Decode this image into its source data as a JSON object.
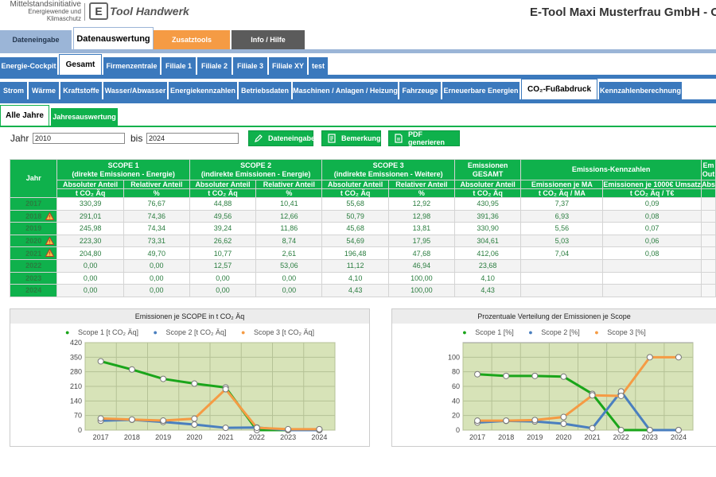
{
  "header": {
    "brand_line1": "Mittelstandsinitiative",
    "brand_line2": "Energiewende und",
    "brand_line3": "Klimaschutz",
    "logo_text": "Tool Handwerk",
    "company": "E-Tool Maxi Musterfrau GmbH - Oryx"
  },
  "main_tabs": [
    "Dateneingabe",
    "Datenauswertung",
    "Zusatztools",
    "Info / Hilfe"
  ],
  "location_tabs": [
    "Energie-Cockpit",
    "Gesamt",
    "Firmenzentrale",
    "Filiale 1",
    "Filiale 2",
    "Filiale 3",
    "Filiale XY",
    "test"
  ],
  "category_tabs": [
    "Strom",
    "Wärme",
    "Kraftstoffe",
    "Wasser/Abwasser",
    "Energiekennzahlen",
    "Betriebsdaten",
    "Maschinen / Anlagen / Heizung",
    "Fahrzeuge",
    "Erneuerbare Energien",
    "CO₂-Fußabdruck",
    "Kennzahlenberechnung"
  ],
  "sub_tabs": [
    "Alle Jahre",
    "Jahresauswertung"
  ],
  "filter": {
    "jahr_label": "Jahr",
    "from": "2010",
    "bis_label": "bis",
    "to": "2024",
    "btn_dateneingabe": "Dateneingabe",
    "btn_bemerkung": "Bemerkung",
    "btn_pdf": "PDF generieren"
  },
  "table": {
    "col_year": "Jahr",
    "scope1_title": "SCOPE 1",
    "scope1_sub": "(direkte Emissionen - Energie)",
    "scope2_title": "SCOPE 2",
    "scope2_sub": "(indirekte Emissionen - Energie)",
    "scope3_title": "SCOPE 3",
    "scope3_sub": "(indirekte Emissionen - Weitere)",
    "total_title": "Emissionen",
    "total_sub": "GESAMT",
    "kpi_title": "Emissions-Kennzahlen",
    "extra_title": "Em",
    "extra_sub": "Out",
    "abs": "Absoluter Anteil",
    "rel": "Relativer Anteil",
    "unit_t": "t CO₂ Äq",
    "unit_pct": "%",
    "kpi_ma": "Emissionen je MA",
    "kpi_umsatz": "Emissionen je 1000€ Umsatz",
    "unit_ma": "t CO₂ Äq / MA",
    "unit_umsatz": "t CO₂ Äq / T€",
    "extra_h2": "Abs",
    "rows": [
      {
        "year": "2017",
        "warn": false,
        "s1a": "330,39",
        "s1r": "76,67",
        "s2a": "44,88",
        "s2r": "10,41",
        "s3a": "55,68",
        "s3r": "12,92",
        "tot": "430,95",
        "ma": "7,37",
        "ums": "0,09"
      },
      {
        "year": "2018",
        "warn": true,
        "s1a": "291,01",
        "s1r": "74,36",
        "s2a": "49,56",
        "s2r": "12,66",
        "s3a": "50,79",
        "s3r": "12,98",
        "tot": "391,36",
        "ma": "6,93",
        "ums": "0,08"
      },
      {
        "year": "2019",
        "warn": false,
        "s1a": "245,98",
        "s1r": "74,34",
        "s2a": "39,24",
        "s2r": "11,86",
        "s3a": "45,68",
        "s3r": "13,81",
        "tot": "330,90",
        "ma": "5,56",
        "ums": "0,07"
      },
      {
        "year": "2020",
        "warn": true,
        "s1a": "223,30",
        "s1r": "73,31",
        "s2a": "26,62",
        "s2r": "8,74",
        "s3a": "54,69",
        "s3r": "17,95",
        "tot": "304,61",
        "ma": "5,03",
        "ums": "0,06"
      },
      {
        "year": "2021",
        "warn": true,
        "s1a": "204,80",
        "s1r": "49,70",
        "s2a": "10,77",
        "s2r": "2,61",
        "s3a": "196,48",
        "s3r": "47,68",
        "tot": "412,06",
        "ma": "7,04",
        "ums": "0,08"
      },
      {
        "year": "2022",
        "warn": false,
        "s1a": "0,00",
        "s1r": "0,00",
        "s2a": "12,57",
        "s2r": "53,06",
        "s3a": "11,12",
        "s3r": "46,94",
        "tot": "23,68",
        "ma": "",
        "ums": ""
      },
      {
        "year": "2023",
        "warn": false,
        "s1a": "0,00",
        "s1r": "0,00",
        "s2a": "0,00",
        "s2r": "0,00",
        "s3a": "4,10",
        "s3r": "100,00",
        "tot": "4,10",
        "ma": "",
        "ums": ""
      },
      {
        "year": "2024",
        "warn": false,
        "s1a": "0,00",
        "s1r": "0,00",
        "s2a": "0,00",
        "s2r": "0,00",
        "s3a": "4,43",
        "s3r": "100,00",
        "tot": "4,43",
        "ma": "",
        "ums": ""
      }
    ]
  },
  "colors": {
    "scope1": "#1aa51a",
    "scope2": "#4a7fbf",
    "scope3": "#f59b44",
    "plot_bg": "#d7e3b8"
  },
  "chart_data": [
    {
      "type": "line",
      "title": "Emissionen je SCOPE in t CO₂ Äq",
      "x": [
        "2017",
        "2018",
        "2019",
        "2020",
        "2021",
        "2022",
        "2023",
        "2024"
      ],
      "series": [
        {
          "name": "Scope 1 [t CO₂ Äq]",
          "values": [
            330.39,
            291.01,
            245.98,
            223.3,
            204.8,
            0,
            0,
            0
          ]
        },
        {
          "name": "Scope 2 [t CO₂ Äq]",
          "values": [
            44.88,
            49.56,
            39.24,
            26.62,
            10.77,
            12.57,
            0,
            0
          ]
        },
        {
          "name": "Scope 3 [t CO₂ Äq]",
          "values": [
            55.68,
            50.79,
            45.68,
            54.69,
            196.48,
            11.12,
            4.1,
            4.43
          ]
        }
      ],
      "yticks": [
        "0",
        "70",
        "140",
        "210",
        "280",
        "350",
        "420"
      ],
      "ylim": [
        0,
        420
      ],
      "grid": true,
      "legend": "top"
    },
    {
      "type": "line",
      "title": "Prozentuale Verteilung der Emissionen je Scope",
      "x": [
        "2017",
        "2018",
        "2019",
        "2020",
        "2021",
        "2022",
        "2023",
        "2024"
      ],
      "series": [
        {
          "name": "Scope 1 [%]",
          "values": [
            76.67,
            74.36,
            74.34,
            73.31,
            49.7,
            0,
            0,
            0
          ]
        },
        {
          "name": "Scope 2 [%]",
          "values": [
            10.41,
            12.66,
            11.86,
            8.74,
            2.61,
            53.06,
            0,
            0
          ]
        },
        {
          "name": "Scope 3 [%]",
          "values": [
            12.92,
            12.98,
            13.81,
            17.95,
            47.68,
            46.94,
            100,
            100
          ]
        }
      ],
      "yticks": [
        "0",
        "20",
        "40",
        "60",
        "80",
        "100"
      ],
      "ylim": [
        0,
        120
      ],
      "grid": true,
      "legend": "top"
    }
  ]
}
